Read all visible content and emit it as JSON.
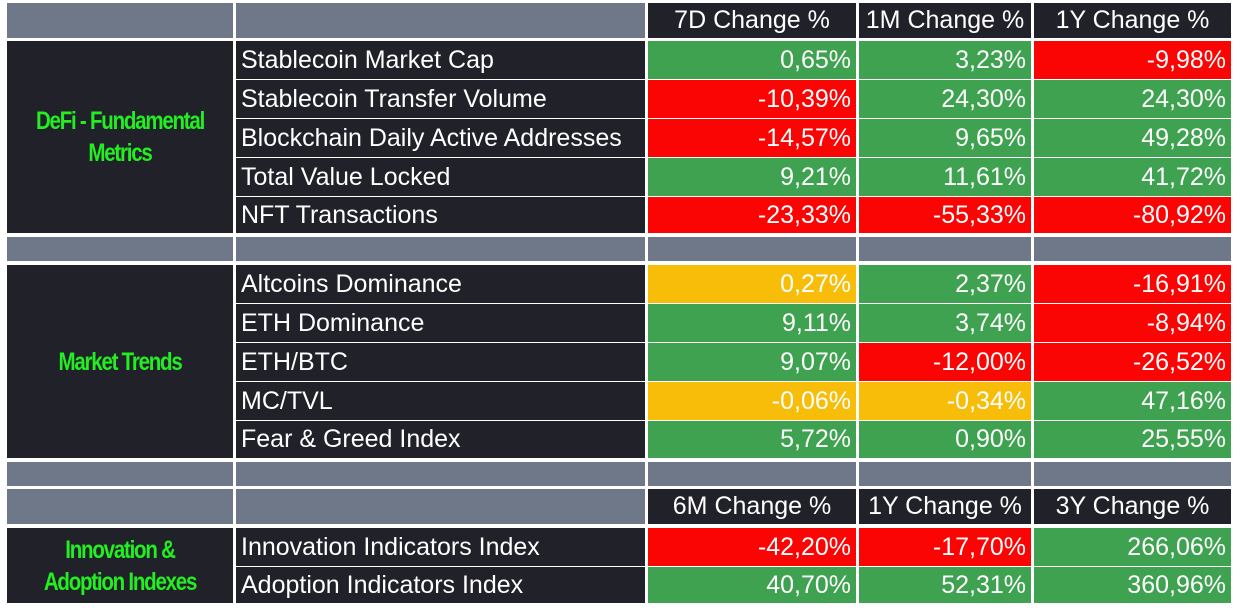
{
  "colors": {
    "positive": "#3ea250",
    "negative": "#fa0404",
    "neutral": "#f7bd08",
    "section_title": "#22ee22",
    "cell_background": "#212129",
    "spacer": "#6f7889"
  },
  "header_top": [
    "7D Change %",
    "1M Change %",
    "1Y Change %"
  ],
  "sections": [
    {
      "title": "DeFi - Fundamental Metrics",
      "rows": [
        {
          "label": "Stablecoin Market Cap",
          "values": [
            "0,65%",
            "3,23%",
            "-9,98%"
          ],
          "colors": [
            "green",
            "green",
            "red"
          ]
        },
        {
          "label": "Stablecoin Transfer Volume",
          "values": [
            "-10,39%",
            "24,30%",
            "24,30%"
          ],
          "colors": [
            "red",
            "green",
            "green"
          ]
        },
        {
          "label": "Blockchain Daily Active Addresses",
          "values": [
            "-14,57%",
            "9,65%",
            "49,28%"
          ],
          "colors": [
            "red",
            "green",
            "green"
          ]
        },
        {
          "label": "Total Value Locked",
          "values": [
            "9,21%",
            "11,61%",
            "41,72%"
          ],
          "colors": [
            "green",
            "green",
            "green"
          ]
        },
        {
          "label": "NFT Transactions",
          "values": [
            "-23,33%",
            "-55,33%",
            "-80,92%"
          ],
          "colors": [
            "red",
            "red",
            "red"
          ]
        }
      ]
    },
    {
      "title": "Market Trends",
      "rows": [
        {
          "label": "Altcoins Dominance",
          "values": [
            "0,27%",
            "2,37%",
            "-16,91%"
          ],
          "colors": [
            "yellow",
            "green",
            "red"
          ]
        },
        {
          "label": "ETH Dominance",
          "values": [
            "9,11%",
            "3,74%",
            "-8,94%"
          ],
          "colors": [
            "green",
            "green",
            "red"
          ]
        },
        {
          "label": "ETH/BTC",
          "values": [
            "9,07%",
            "-12,00%",
            "-26,52%"
          ],
          "colors": [
            "green",
            "red",
            "red"
          ]
        },
        {
          "label": "MC/TVL",
          "values": [
            "-0,06%",
            "-0,34%",
            "47,16%"
          ],
          "colors": [
            "yellow",
            "yellow",
            "green"
          ]
        },
        {
          "label": "Fear & Greed Index",
          "values": [
            "5,72%",
            "0,90%",
            "25,55%"
          ],
          "colors": [
            "green",
            "green",
            "green"
          ]
        }
      ]
    },
    {
      "title": "Innovation & Adoption Indexes",
      "header": [
        "6M Change %",
        "1Y Change %",
        "3Y Change %"
      ],
      "rows": [
        {
          "label": "Innovation Indicators Index",
          "values": [
            "-42,20%",
            "-17,70%",
            "266,06%"
          ],
          "colors": [
            "red",
            "red",
            "green"
          ]
        },
        {
          "label": "Adoption Indicators Index",
          "values": [
            "40,70%",
            "52,31%",
            "360,96%"
          ],
          "colors": [
            "green",
            "green",
            "green"
          ]
        }
      ]
    }
  ]
}
